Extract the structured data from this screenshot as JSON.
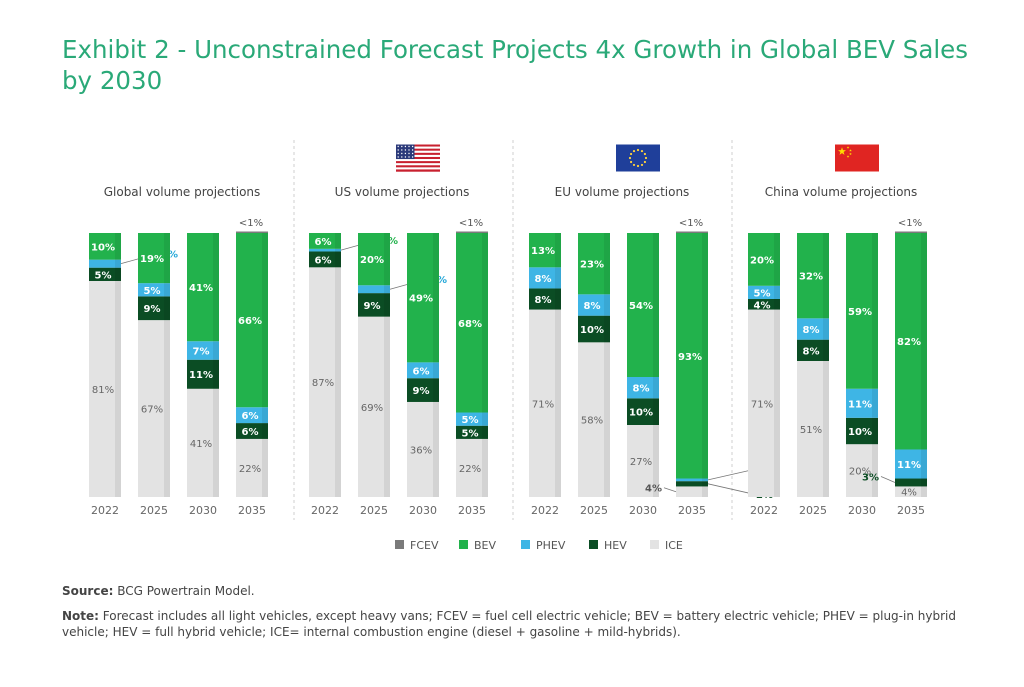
{
  "title": "Exhibit 2 - Unconstrained Forecast Projects 4x Growth in Global BEV Sales by 2030",
  "legend": [
    "FCEV",
    "BEV",
    "PHEV",
    "HEV",
    "ICE"
  ],
  "colors": {
    "FCEV": "#7a7a7a",
    "BEV": "#22b24c",
    "PHEV": "#3eb5e5",
    "HEV": "#0b4d24",
    "ICE": "#e3e3e3",
    "title": "#2aa978",
    "callout": "#24a7d8"
  },
  "source": {
    "label": "Source:",
    "text": "BCG Powertrain Model."
  },
  "note": {
    "label": "Note:",
    "text": "Forecast includes all light vehicles, except heavy vans; FCEV = fuel cell electric vehicle; BEV = battery electric vehicle; PHEV = plug-in hybrid vehicle; HEV = full hybrid vehicle; ICE= internal combustion engine (diesel + gasoline + mild-hybrids)."
  },
  "chart_data": [
    {
      "type": "bar",
      "stacked": true,
      "title": "Global volume projections",
      "flag": "none",
      "categories": [
        "2022",
        "2025",
        "2030",
        "2035"
      ],
      "ylim": [
        0,
        100
      ],
      "series": [
        {
          "name": "ICE",
          "values": [
            81,
            67,
            41,
            22
          ],
          "labels": [
            "81%",
            "67%",
            "41%",
            "22%"
          ]
        },
        {
          "name": "HEV",
          "values": [
            5,
            9,
            11,
            6
          ],
          "labels": [
            "5%",
            "9%",
            "11%",
            "6%"
          ]
        },
        {
          "name": "PHEV",
          "values": [
            3,
            5,
            7,
            6
          ],
          "labels": [
            "3%",
            "5%",
            "7%",
            "6%"
          ]
        },
        {
          "name": "BEV",
          "values": [
            10,
            19,
            41,
            66
          ],
          "labels": [
            "10%",
            "19%",
            "41%",
            "66%"
          ]
        },
        {
          "name": "FCEV",
          "values": [
            0,
            0,
            0,
            0
          ],
          "labels": [
            "",
            "",
            "",
            "<1%"
          ]
        }
      ]
    },
    {
      "type": "bar",
      "stacked": true,
      "title": "US volume projections",
      "flag": "us",
      "categories": [
        "2022",
        "2025",
        "2030",
        "2035"
      ],
      "ylim": [
        0,
        100
      ],
      "series": [
        {
          "name": "ICE",
          "values": [
            87,
            69,
            36,
            22
          ],
          "labels": [
            "87%",
            "69%",
            "36%",
            "22%"
          ]
        },
        {
          "name": "HEV",
          "values": [
            6,
            9,
            9,
            5
          ],
          "labels": [
            "6%",
            "9%",
            "9%",
            "5%"
          ]
        },
        {
          "name": "PHEV",
          "values": [
            1,
            3,
            6,
            5
          ],
          "labels": [
            "1%",
            "3%",
            "6%",
            "5%"
          ]
        },
        {
          "name": "BEV",
          "values": [
            6,
            20,
            49,
            68
          ],
          "labels": [
            "6%",
            "20%",
            "49%",
            "68%"
          ]
        },
        {
          "name": "FCEV",
          "values": [
            0,
            0,
            0,
            0
          ],
          "labels": [
            "",
            "",
            "",
            "<1%"
          ]
        }
      ]
    },
    {
      "type": "bar",
      "stacked": true,
      "title": "EU volume projections",
      "flag": "eu",
      "categories": [
        "2022",
        "2025",
        "2030",
        "2035"
      ],
      "ylim": [
        0,
        100
      ],
      "series": [
        {
          "name": "ICE",
          "values": [
            71,
            58,
            27,
            4
          ],
          "labels": [
            "71%",
            "58%",
            "27%",
            "4%"
          ]
        },
        {
          "name": "HEV",
          "values": [
            8,
            10,
            10,
            2
          ],
          "labels": [
            "8%",
            "10%",
            "10%",
            "2%"
          ]
        },
        {
          "name": "PHEV",
          "values": [
            8,
            8,
            8,
            1
          ],
          "labels": [
            "8%",
            "8%",
            "8%",
            "1%"
          ]
        },
        {
          "name": "BEV",
          "values": [
            13,
            23,
            54,
            93
          ],
          "labels": [
            "13%",
            "23%",
            "54%",
            "93%"
          ]
        },
        {
          "name": "FCEV",
          "values": [
            0,
            0,
            0,
            0
          ],
          "labels": [
            "",
            "",
            "",
            "<1%"
          ]
        }
      ]
    },
    {
      "type": "bar",
      "stacked": true,
      "title": "China volume projections",
      "flag": "cn",
      "categories": [
        "2022",
        "2025",
        "2030",
        "2035"
      ],
      "ylim": [
        0,
        100
      ],
      "series": [
        {
          "name": "ICE",
          "values": [
            71,
            51,
            20,
            4
          ],
          "labels": [
            "71%",
            "51%",
            "20%",
            "4%"
          ]
        },
        {
          "name": "HEV",
          "values": [
            4,
            8,
            10,
            3
          ],
          "labels": [
            "4%",
            "8%",
            "10%",
            "3%"
          ]
        },
        {
          "name": "PHEV",
          "values": [
            5,
            8,
            11,
            11
          ],
          "labels": [
            "5%",
            "8%",
            "11%",
            "11%"
          ]
        },
        {
          "name": "BEV",
          "values": [
            20,
            32,
            59,
            82
          ],
          "labels": [
            "20%",
            "32%",
            "59%",
            "82%"
          ]
        },
        {
          "name": "FCEV",
          "values": [
            0,
            0,
            0,
            0
          ],
          "labels": [
            "",
            "",
            "",
            "<1%"
          ]
        }
      ]
    }
  ]
}
